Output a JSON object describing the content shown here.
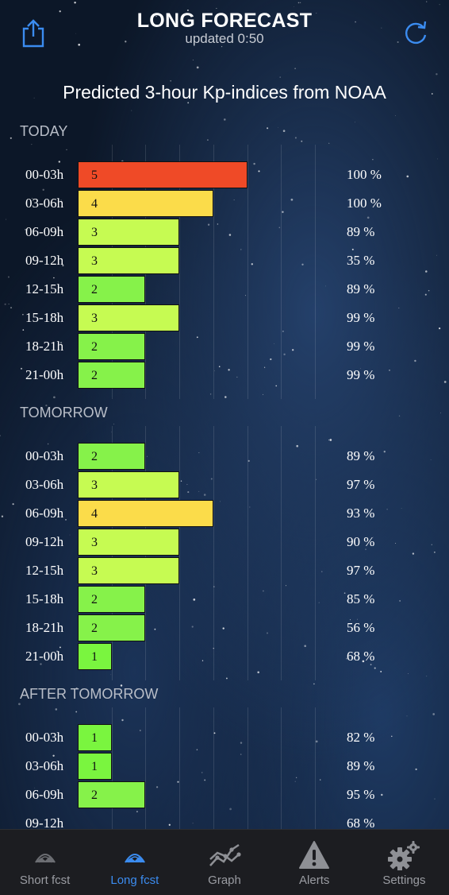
{
  "header": {
    "title": "LONG FORECAST",
    "updated": "updated  0:50",
    "share_icon": "share-icon",
    "refresh_icon": "refresh-icon"
  },
  "subtitle": "Predicted 3-hour Kp-indices from NOAA",
  "colors": {
    "kp1": "#7af53f",
    "kp2": "#86f24a",
    "kp3": "#c6fb52",
    "kp4": "#fbdc4a",
    "kp5": "#ef4a27",
    "accent": "#3b8cf0"
  },
  "chart_data": {
    "type": "bar",
    "orientation": "horizontal",
    "xlim": [
      0,
      7
    ],
    "sections": [
      {
        "title": "TODAY",
        "rows": [
          {
            "time": "00-03h",
            "kp": 5,
            "kp_label": "5",
            "prob": "100 %"
          },
          {
            "time": "03-06h",
            "kp": 4,
            "kp_label": "4",
            "prob": "100 %"
          },
          {
            "time": "06-09h",
            "kp": 3,
            "kp_label": "3",
            "prob": "89 %"
          },
          {
            "time": "09-12h",
            "kp": 3,
            "kp_label": "3",
            "prob": "35 %"
          },
          {
            "time": "12-15h",
            "kp": 2,
            "kp_label": "2",
            "prob": "89 %"
          },
          {
            "time": "15-18h",
            "kp": 3,
            "kp_label": "3",
            "prob": "99 %"
          },
          {
            "time": "18-21h",
            "kp": 2,
            "kp_label": "2",
            "prob": "99 %"
          },
          {
            "time": "21-00h",
            "kp": 2,
            "kp_label": "2",
            "prob": "99 %"
          }
        ]
      },
      {
        "title": "TOMORROW",
        "rows": [
          {
            "time": "00-03h",
            "kp": 2,
            "kp_label": "2",
            "prob": "89 %"
          },
          {
            "time": "03-06h",
            "kp": 3,
            "kp_label": "3",
            "prob": "97 %"
          },
          {
            "time": "06-09h",
            "kp": 4,
            "kp_label": "4",
            "prob": "93 %"
          },
          {
            "time": "09-12h",
            "kp": 3,
            "kp_label": "3",
            "prob": "90 %"
          },
          {
            "time": "12-15h",
            "kp": 3,
            "kp_label": "3",
            "prob": "97 %"
          },
          {
            "time": "15-18h",
            "kp": 2,
            "kp_label": "2",
            "prob": "85 %"
          },
          {
            "time": "18-21h",
            "kp": 2,
            "kp_label": "2",
            "prob": "56 %"
          },
          {
            "time": "21-00h",
            "kp": 1,
            "kp_label": "1",
            "prob": "68 %"
          }
        ]
      },
      {
        "title": "AFTER TOMORROW",
        "rows": [
          {
            "time": "00-03h",
            "kp": 1,
            "kp_label": "1",
            "prob": "82 %"
          },
          {
            "time": "03-06h",
            "kp": 1,
            "kp_label": "1",
            "prob": "89 %"
          },
          {
            "time": "06-09h",
            "kp": 2,
            "kp_label": "2",
            "prob": "95 %"
          },
          {
            "time": "09-12h",
            "kp": 0,
            "kp_label": "",
            "prob": "68 %"
          }
        ]
      }
    ]
  },
  "tabs": [
    {
      "label": "Short fcst",
      "icon": "aurora-dim-icon",
      "active": false
    },
    {
      "label": "Long fcst",
      "icon": "aurora-icon",
      "active": true
    },
    {
      "label": "Graph",
      "icon": "graph-icon",
      "active": false
    },
    {
      "label": "Alerts",
      "icon": "alert-icon",
      "active": false
    },
    {
      "label": "Settings",
      "icon": "gear-icon",
      "active": false
    }
  ]
}
